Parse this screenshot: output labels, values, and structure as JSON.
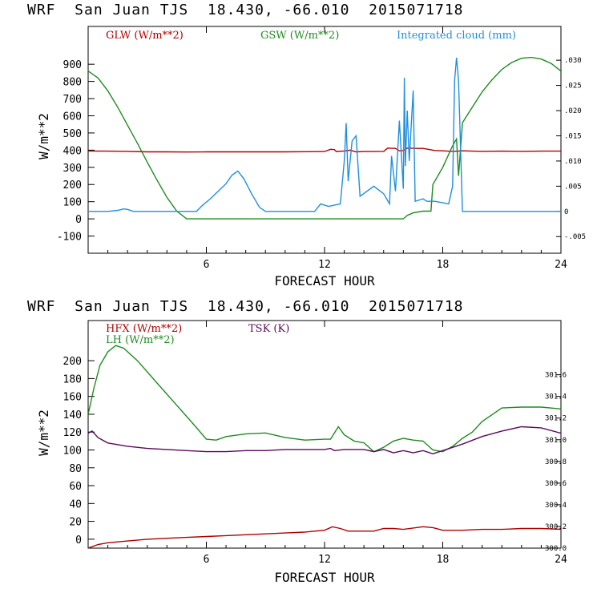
{
  "chart_data": [
    {
      "type": "line",
      "title": "WRF  San Juan TJS  18.430, -66.010  2015071718",
      "xlabel": "FORECAST HOUR",
      "ylabel": "W/m**2",
      "xlim": [
        0,
        24
      ],
      "ylim": [
        -200,
        1120
      ],
      "xticks": [
        "6",
        "12",
        "18",
        "24"
      ],
      "yticks": [
        "-100",
        "0",
        "100",
        "200",
        "300",
        "400",
        "500",
        "600",
        "700",
        "800",
        "900"
      ],
      "y2ticks": [
        "-.005",
        "0",
        ".005",
        ".010",
        ".015",
        ".020",
        ".025",
        ".030"
      ],
      "y2lim": [
        -0.0083,
        0.0367
      ],
      "legend": [
        {
          "name": "GLW (W/m**2)",
          "color": "#b00000"
        },
        {
          "name": "GSW (W/m**2)",
          "color": "#1e8c1e"
        },
        {
          "name": "Integrated cloud (mm)",
          "color": "#1f8fe0"
        }
      ],
      "series": [
        {
          "name": "GLW (W/m**2)",
          "color": "#b00000",
          "axis": "left",
          "points": [
            [
              0,
              395
            ],
            [
              1,
              394
            ],
            [
              2,
              393
            ],
            [
              3,
              390
            ],
            [
              4,
              390
            ],
            [
              5,
              389
            ],
            [
              6,
              390
            ],
            [
              7,
              390
            ],
            [
              8,
              390
            ],
            [
              9,
              390
            ],
            [
              10,
              390
            ],
            [
              11,
              391
            ],
            [
              12,
              392
            ],
            [
              12.3,
              405
            ],
            [
              12.5,
              403
            ],
            [
              12.6,
              392
            ],
            [
              13,
              395
            ],
            [
              13.3,
              400
            ],
            [
              13.6,
              390
            ],
            [
              14,
              392
            ],
            [
              14.5,
              392
            ],
            [
              15,
              393
            ],
            [
              15.2,
              412
            ],
            [
              15.6,
              410
            ],
            [
              15.8,
              396
            ],
            [
              16,
              398
            ],
            [
              16.2,
              412
            ],
            [
              16.6,
              410
            ],
            [
              17,
              410
            ],
            [
              17.4,
              402
            ],
            [
              17.6,
              398
            ],
            [
              18,
              396
            ],
            [
              18.5,
              393
            ],
            [
              19,
              396
            ],
            [
              20,
              393
            ],
            [
              21,
              394
            ],
            [
              22,
              393
            ],
            [
              23,
              394
            ],
            [
              24,
              394
            ]
          ]
        },
        {
          "name": "GSW (W/m**2)",
          "color": "#1e8c1e",
          "axis": "left",
          "points": [
            [
              0,
              860
            ],
            [
              0.5,
              820
            ],
            [
              1,
              745
            ],
            [
              1.5,
              650
            ],
            [
              2,
              545
            ],
            [
              2.5,
              440
            ],
            [
              3,
              330
            ],
            [
              3.5,
              225
            ],
            [
              4,
              125
            ],
            [
              4.5,
              45
            ],
            [
              5,
              0
            ],
            [
              8,
              0
            ],
            [
              12,
              0
            ],
            [
              16,
              0
            ],
            [
              16.2,
              20
            ],
            [
              16.5,
              35
            ],
            [
              17,
              45
            ],
            [
              17.4,
              45
            ],
            [
              17.5,
              200
            ],
            [
              18,
              300
            ],
            [
              18.5,
              425
            ],
            [
              18.7,
              465
            ],
            [
              18.8,
              250
            ],
            [
              19,
              560
            ],
            [
              19.5,
              650
            ],
            [
              20,
              740
            ],
            [
              20.5,
              810
            ],
            [
              21,
              870
            ],
            [
              21.5,
              910
            ],
            [
              22,
              935
            ],
            [
              22.5,
              940
            ],
            [
              23,
              930
            ],
            [
              23.5,
              905
            ],
            [
              24,
              860
            ]
          ]
        },
        {
          "name": "Integrated cloud (mm)",
          "color": "#1f8fe0",
          "axis": "right",
          "points": [
            [
              0,
              0
            ],
            [
              1,
              0
            ],
            [
              1.5,
              0.0002
            ],
            [
              1.8,
              0.0005
            ],
            [
              2.0,
              0.0004
            ],
            [
              2.3,
              0
            ],
            [
              4,
              0
            ],
            [
              5.5,
              0
            ],
            [
              5.8,
              0.0012
            ],
            [
              6.2,
              0.0025
            ],
            [
              6.6,
              0.004
            ],
            [
              7,
              0.0055
            ],
            [
              7.3,
              0.0072
            ],
            [
              7.6,
              0.008
            ],
            [
              7.9,
              0.0065
            ],
            [
              8.3,
              0.0035
            ],
            [
              8.7,
              0.0008
            ],
            [
              9,
              0
            ],
            [
              11.5,
              0
            ],
            [
              11.8,
              0.0015
            ],
            [
              12.2,
              0.001
            ],
            [
              12.8,
              0.0015
            ],
            [
              13,
              0.01
            ],
            [
              13.1,
              0.0175
            ],
            [
              13.2,
              0.006
            ],
            [
              13.4,
              0.014
            ],
            [
              13.6,
              0.015
            ],
            [
              13.8,
              0.003
            ],
            [
              14.5,
              0.005
            ],
            [
              15,
              0.0035
            ],
            [
              15.3,
              0.0015
            ],
            [
              15.4,
              0.011
            ],
            [
              15.6,
              0.004
            ],
            [
              15.8,
              0.018
            ],
            [
              16,
              0.0045
            ],
            [
              16.05,
              0.0265
            ],
            [
              16.1,
              0.009
            ],
            [
              16.2,
              0.02
            ],
            [
              16.3,
              0.01
            ],
            [
              16.5,
              0.024
            ],
            [
              16.6,
              0.002
            ],
            [
              17.0,
              0.0025
            ],
            [
              17.2,
              0.002
            ],
            [
              17.6,
              0.002
            ],
            [
              18.3,
              0.0015
            ],
            [
              18.5,
              0.005
            ],
            [
              18.6,
              0.026
            ],
            [
              18.7,
              0.0305
            ],
            [
              18.8,
              0.026
            ],
            [
              19,
              0
            ],
            [
              20,
              0
            ],
            [
              22,
              0
            ],
            [
              24,
              0
            ]
          ]
        }
      ]
    },
    {
      "type": "line",
      "title": "WRF  San Juan TJS  18.430, -66.010  2015071718",
      "xlabel": "FORECAST HOUR",
      "ylabel": "W/m**2",
      "xlim": [
        0,
        24
      ],
      "ylim": [
        -10,
        245
      ],
      "xticks": [
        "6",
        "12",
        "18",
        "24"
      ],
      "yticks": [
        "0",
        "20",
        "40",
        "60",
        "80",
        "100",
        "120",
        "140",
        "160",
        "180",
        "200"
      ],
      "y2ticks": [
        "300.0",
        "300.2",
        "300.4",
        "300.6",
        "300.8",
        "301.0",
        "301.2",
        "301.4",
        "301.6"
      ],
      "y2lim": [
        300.0,
        302.1
      ],
      "legend": [
        {
          "name": "HFX (W/m**2)",
          "color": "#b00000"
        },
        {
          "name": "LH  (W/m**2)",
          "color": "#1e8c1e"
        },
        {
          "name": "TSK (K)",
          "color": "#5a0a5a"
        }
      ],
      "series": [
        {
          "name": "HFX (W/m**2)",
          "color": "#b00000",
          "axis": "left",
          "points": [
            [
              0,
              -10
            ],
            [
              0.5,
              -6
            ],
            [
              1,
              -4
            ],
            [
              2,
              -2
            ],
            [
              3,
              0
            ],
            [
              4,
              1
            ],
            [
              5,
              2
            ],
            [
              6,
              3
            ],
            [
              7,
              4
            ],
            [
              8,
              5
            ],
            [
              9,
              6
            ],
            [
              10,
              7
            ],
            [
              11,
              8
            ],
            [
              12,
              10
            ],
            [
              12.4,
              14
            ],
            [
              12.8,
              12
            ],
            [
              13.2,
              9
            ],
            [
              14,
              9
            ],
            [
              14.5,
              9
            ],
            [
              15,
              12
            ],
            [
              15.5,
              12
            ],
            [
              16,
              11
            ],
            [
              17,
              14
            ],
            [
              17.5,
              13
            ],
            [
              18,
              10
            ],
            [
              19,
              10
            ],
            [
              20,
              11
            ],
            [
              21,
              11
            ],
            [
              22,
              12
            ],
            [
              23,
              12
            ],
            [
              24,
              11
            ]
          ]
        },
        {
          "name": "LH  (W/m**2)",
          "color": "#1e8c1e",
          "axis": "left",
          "points": [
            [
              0,
              140
            ],
            [
              0.3,
              170
            ],
            [
              0.6,
              195
            ],
            [
              1,
              210
            ],
            [
              1.4,
              217
            ],
            [
              1.8,
              214
            ],
            [
              2.5,
              200
            ],
            [
              3.5,
              175
            ],
            [
              4.5,
              150
            ],
            [
              5.5,
              125
            ],
            [
              6,
              112
            ],
            [
              6.5,
              111
            ],
            [
              7,
              115
            ],
            [
              8,
              118
            ],
            [
              9,
              119
            ],
            [
              10,
              114
            ],
            [
              11,
              111
            ],
            [
              12,
              112
            ],
            [
              12.3,
              112
            ],
            [
              12.7,
              126
            ],
            [
              13,
              117
            ],
            [
              13.5,
              110
            ],
            [
              14,
              108
            ],
            [
              14.5,
              98
            ],
            [
              15,
              103
            ],
            [
              15.5,
              110
            ],
            [
              16,
              113
            ],
            [
              16.5,
              111
            ],
            [
              17,
              110
            ],
            [
              17.5,
              100
            ],
            [
              18,
              98
            ],
            [
              18.5,
              104
            ],
            [
              19,
              113
            ],
            [
              19.5,
              120
            ],
            [
              20,
              132
            ],
            [
              21,
              147
            ],
            [
              22,
              148
            ],
            [
              23,
              148
            ],
            [
              24,
              146
            ]
          ]
        },
        {
          "name": "TSK (K)",
          "color": "#5a0a5a",
          "axis": "right",
          "points": [
            [
              0,
              301.06
            ],
            [
              0.2,
              301.08
            ],
            [
              0.5,
              301.02
            ],
            [
              1,
              300.97
            ],
            [
              2,
              300.94
            ],
            [
              3,
              300.92
            ],
            [
              4,
              300.91
            ],
            [
              5,
              300.9
            ],
            [
              6,
              300.89
            ],
            [
              7,
              300.89
            ],
            [
              8,
              300.9
            ],
            [
              9,
              300.9
            ],
            [
              10,
              300.91
            ],
            [
              11,
              300.91
            ],
            [
              12,
              300.91
            ],
            [
              12.3,
              300.92
            ],
            [
              12.5,
              300.9
            ],
            [
              13,
              300.91
            ],
            [
              14,
              300.91
            ],
            [
              14.5,
              300.89
            ],
            [
              15,
              300.91
            ],
            [
              15.5,
              300.88
            ],
            [
              16,
              300.9
            ],
            [
              16.5,
              300.88
            ],
            [
              17,
              300.9
            ],
            [
              17.5,
              300.87
            ],
            [
              18,
              300.9
            ],
            [
              19,
              300.96
            ],
            [
              20,
              301.03
            ],
            [
              21,
              301.08
            ],
            [
              22,
              301.12
            ],
            [
              23,
              301.11
            ],
            [
              24,
              301.06
            ]
          ]
        }
      ]
    }
  ]
}
